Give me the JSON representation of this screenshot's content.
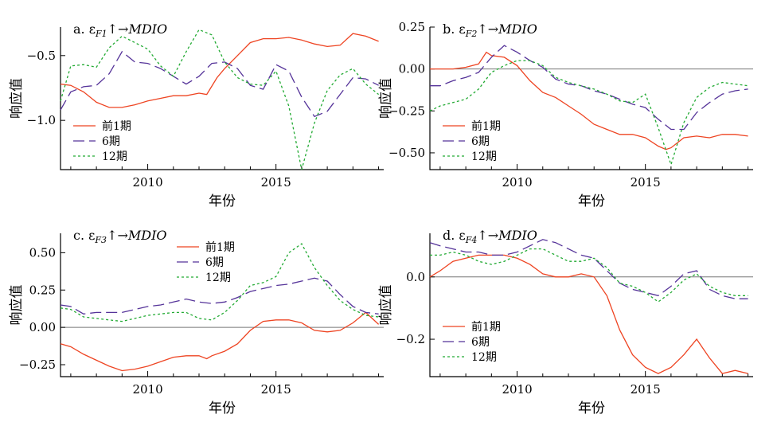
{
  "chart_data": [
    {
      "type": "line",
      "title": "a. εF1↑→MDIO",
      "title_parts": {
        "prefix": "a. ε",
        "sub": "F1",
        "suffix": "↑→",
        "italic": "MDIO"
      },
      "xlabel": "年份",
      "ylabel": "响应值",
      "xlim": [
        2006.6,
        2019.2
      ],
      "ylim": [
        -1.38,
        -0.28
      ],
      "xticks": [
        2010,
        2015
      ],
      "yticks": [
        -0.5,
        -1.0
      ],
      "ytick_labels": [
        "−0.5",
        "−1.0"
      ],
      "zero_line": false,
      "grid": false,
      "legend_position": "lower-left",
      "series": [
        {
          "name": "前1期",
          "color": "#ee4422",
          "dash": "solid",
          "x": [
            2006.6,
            2007.0,
            2007.5,
            2008.0,
            2008.5,
            2009.0,
            2009.5,
            2010.0,
            2010.5,
            2011.0,
            2011.5,
            2012.0,
            2012.3,
            2012.7,
            2013.0,
            2013.5,
            2014.0,
            2014.5,
            2015.0,
            2015.5,
            2016.0,
            2016.5,
            2017.0,
            2017.5,
            2018.0,
            2018.5,
            2019.0
          ],
          "y": [
            -0.72,
            -0.73,
            -0.78,
            -0.86,
            -0.9,
            -0.9,
            -0.88,
            -0.85,
            -0.83,
            -0.81,
            -0.81,
            -0.79,
            -0.8,
            -0.67,
            -0.6,
            -0.5,
            -0.4,
            -0.37,
            -0.37,
            -0.36,
            -0.38,
            -0.41,
            -0.43,
            -0.42,
            -0.33,
            -0.35,
            -0.39
          ]
        },
        {
          "name": "6期",
          "color": "#553399",
          "dash": "long",
          "x": [
            2006.6,
            2007.0,
            2007.5,
            2008.0,
            2008.5,
            2009.0,
            2009.5,
            2010.0,
            2010.5,
            2011.0,
            2011.5,
            2012.0,
            2012.5,
            2013.0,
            2013.5,
            2014.0,
            2014.5,
            2015.0,
            2015.5,
            2016.0,
            2016.5,
            2017.0,
            2017.5,
            2018.0,
            2018.5,
            2019.0
          ],
          "y": [
            -0.92,
            -0.78,
            -0.74,
            -0.73,
            -0.64,
            -0.47,
            -0.55,
            -0.56,
            -0.6,
            -0.66,
            -0.72,
            -0.66,
            -0.56,
            -0.55,
            -0.6,
            -0.73,
            -0.76,
            -0.57,
            -0.62,
            -0.82,
            -0.97,
            -0.93,
            -0.8,
            -0.67,
            -0.68,
            -0.73
          ]
        },
        {
          "name": "12期",
          "color": "#22aa33",
          "dash": "dot",
          "x": [
            2006.6,
            2007.0,
            2007.5,
            2008.0,
            2008.5,
            2009.0,
            2009.5,
            2010.0,
            2010.5,
            2011.0,
            2011.5,
            2012.0,
            2012.5,
            2013.0,
            2013.5,
            2014.0,
            2014.5,
            2015.0,
            2015.5,
            2016.0,
            2016.5,
            2017.0,
            2017.5,
            2018.0,
            2018.5,
            2019.0
          ],
          "y": [
            -0.85,
            -0.58,
            -0.57,
            -0.59,
            -0.44,
            -0.35,
            -0.4,
            -0.45,
            -0.58,
            -0.66,
            -0.47,
            -0.3,
            -0.34,
            -0.55,
            -0.67,
            -0.72,
            -0.73,
            -0.62,
            -0.89,
            -1.38,
            -1.02,
            -0.77,
            -0.65,
            -0.6,
            -0.72,
            -0.8
          ]
        }
      ]
    },
    {
      "type": "line",
      "title": "b. εF2↑→MDIO",
      "title_parts": {
        "prefix": "b. ε",
        "sub": "F2",
        "suffix": "↑→",
        "italic": "MDIO"
      },
      "xlabel": "年份",
      "ylabel": "响应值",
      "xlim": [
        2006.6,
        2019.2
      ],
      "ylim": [
        -0.6,
        0.25
      ],
      "xticks": [
        2010,
        2015
      ],
      "yticks": [
        0.25,
        0.0,
        -0.25,
        -0.5
      ],
      "ytick_labels": [
        "0.25",
        "0.00",
        "−0.25",
        "−0.50"
      ],
      "zero_line": true,
      "grid": false,
      "legend_position": "lower-left",
      "series": [
        {
          "name": "前1期",
          "color": "#ee4422",
          "dash": "solid",
          "x": [
            2006.6,
            2007.0,
            2007.5,
            2008.0,
            2008.5,
            2008.8,
            2009.0,
            2009.5,
            2010.0,
            2010.5,
            2011.0,
            2011.5,
            2012.0,
            2012.5,
            2013.0,
            2013.5,
            2014.0,
            2014.5,
            2015.0,
            2015.5,
            2015.8,
            2016.0,
            2016.5,
            2017.0,
            2017.5,
            2018.0,
            2018.5,
            2019.0
          ],
          "y": [
            0.0,
            0.0,
            0.0,
            0.01,
            0.03,
            0.1,
            0.08,
            0.07,
            0.02,
            -0.07,
            -0.14,
            -0.17,
            -0.22,
            -0.27,
            -0.33,
            -0.36,
            -0.39,
            -0.39,
            -0.41,
            -0.46,
            -0.48,
            -0.47,
            -0.41,
            -0.4,
            -0.41,
            -0.39,
            -0.39,
            -0.4
          ]
        },
        {
          "name": "6期",
          "color": "#553399",
          "dash": "long",
          "x": [
            2006.6,
            2007.0,
            2007.5,
            2008.0,
            2008.5,
            2009.0,
            2009.5,
            2010.0,
            2010.5,
            2011.0,
            2011.5,
            2012.0,
            2012.5,
            2013.0,
            2013.5,
            2014.0,
            2014.5,
            2015.0,
            2015.5,
            2016.0,
            2016.5,
            2017.0,
            2017.5,
            2018.0,
            2018.5,
            2019.0
          ],
          "y": [
            -0.1,
            -0.1,
            -0.07,
            -0.05,
            -0.02,
            0.07,
            0.14,
            0.1,
            0.05,
            0.01,
            -0.06,
            -0.09,
            -0.1,
            -0.13,
            -0.15,
            -0.18,
            -0.21,
            -0.23,
            -0.3,
            -0.36,
            -0.36,
            -0.26,
            -0.2,
            -0.15,
            -0.13,
            -0.12
          ]
        },
        {
          "name": "12期",
          "color": "#22aa33",
          "dash": "dot",
          "x": [
            2006.6,
            2007.0,
            2007.5,
            2008.0,
            2008.5,
            2009.0,
            2009.5,
            2010.0,
            2010.5,
            2011.0,
            2011.5,
            2012.0,
            2012.5,
            2013.0,
            2013.5,
            2014.0,
            2014.5,
            2015.0,
            2015.5,
            2016.0,
            2016.5,
            2017.0,
            2017.5,
            2018.0,
            2018.5,
            2019.0
          ],
          "y": [
            -0.25,
            -0.22,
            -0.2,
            -0.18,
            -0.12,
            -0.02,
            0.02,
            0.05,
            0.05,
            0.02,
            -0.05,
            -0.08,
            -0.1,
            -0.12,
            -0.15,
            -0.19,
            -0.2,
            -0.15,
            -0.35,
            -0.57,
            -0.32,
            -0.17,
            -0.11,
            -0.08,
            -0.09,
            -0.1
          ]
        }
      ]
    },
    {
      "type": "line",
      "title": "c. εF3↑→MDIO",
      "title_parts": {
        "prefix": "c. ε",
        "sub": "F3",
        "suffix": "↑→",
        "italic": "MDIO"
      },
      "xlabel": "年份",
      "ylabel": "响应值",
      "xlim": [
        2006.6,
        2019.2
      ],
      "ylim": [
        -0.33,
        0.63
      ],
      "xticks": [
        2010,
        2015
      ],
      "yticks": [
        0.5,
        0.25,
        0.0,
        -0.25
      ],
      "ytick_labels": [
        "0.50",
        "0.25",
        "0.00",
        "−0.25"
      ],
      "zero_line": true,
      "grid": false,
      "legend_position": "top-right",
      "series": [
        {
          "name": "前1期",
          "color": "#ee4422",
          "dash": "solid",
          "x": [
            2006.6,
            2007.0,
            2007.5,
            2008.0,
            2008.5,
            2009.0,
            2009.5,
            2010.0,
            2010.5,
            2011.0,
            2011.5,
            2012.0,
            2012.3,
            2012.5,
            2013.0,
            2013.5,
            2014.0,
            2014.5,
            2015.0,
            2015.5,
            2016.0,
            2016.5,
            2017.0,
            2017.5,
            2018.0,
            2018.5,
            2019.0
          ],
          "y": [
            -0.11,
            -0.13,
            -0.18,
            -0.22,
            -0.26,
            -0.29,
            -0.28,
            -0.26,
            -0.23,
            -0.2,
            -0.19,
            -0.19,
            -0.21,
            -0.19,
            -0.16,
            -0.11,
            -0.02,
            0.04,
            0.05,
            0.05,
            0.03,
            -0.02,
            -0.03,
            -0.02,
            0.03,
            0.1,
            0.02
          ]
        },
        {
          "name": "6期",
          "color": "#553399",
          "dash": "long",
          "x": [
            2006.6,
            2007.0,
            2007.5,
            2008.0,
            2008.5,
            2009.0,
            2009.5,
            2010.0,
            2010.5,
            2011.0,
            2011.5,
            2012.0,
            2012.5,
            2013.0,
            2013.5,
            2014.0,
            2014.5,
            2015.0,
            2015.5,
            2016.0,
            2016.5,
            2017.0,
            2017.5,
            2018.0,
            2018.5,
            2019.0
          ],
          "y": [
            0.15,
            0.14,
            0.09,
            0.1,
            0.1,
            0.1,
            0.12,
            0.14,
            0.15,
            0.17,
            0.19,
            0.17,
            0.16,
            0.17,
            0.2,
            0.24,
            0.26,
            0.28,
            0.29,
            0.31,
            0.33,
            0.31,
            0.22,
            0.14,
            0.1,
            0.09
          ]
        },
        {
          "name": "12期",
          "color": "#22aa33",
          "dash": "dot",
          "x": [
            2006.6,
            2007.0,
            2007.5,
            2008.0,
            2008.5,
            2009.0,
            2009.5,
            2010.0,
            2010.5,
            2011.0,
            2011.5,
            2012.0,
            2012.5,
            2013.0,
            2013.5,
            2014.0,
            2014.5,
            2015.0,
            2015.5,
            2016.0,
            2016.5,
            2017.0,
            2017.5,
            2018.0,
            2018.5,
            2019.0
          ],
          "y": [
            0.13,
            0.12,
            0.07,
            0.06,
            0.05,
            0.04,
            0.06,
            0.08,
            0.09,
            0.1,
            0.1,
            0.06,
            0.05,
            0.1,
            0.18,
            0.28,
            0.3,
            0.34,
            0.5,
            0.56,
            0.4,
            0.28,
            0.18,
            0.12,
            0.08,
            0.07
          ]
        }
      ]
    },
    {
      "type": "line",
      "title": "d. εF4↑→MDIO",
      "title_parts": {
        "prefix": "d. ε",
        "sub": "F4",
        "suffix": "↑→",
        "italic": "MDIO"
      },
      "xlabel": "年份",
      "ylabel": "响应值",
      "xlim": [
        2006.6,
        2019.2
      ],
      "ylim": [
        -0.32,
        0.14
      ],
      "xticks": [
        2010,
        2015
      ],
      "yticks": [
        0.0,
        -0.2
      ],
      "ytick_labels": [
        "0.0",
        "−0.2"
      ],
      "zero_line": true,
      "grid": false,
      "legend_position": "lower-left",
      "series": [
        {
          "name": "前1期",
          "color": "#ee4422",
          "dash": "solid",
          "x": [
            2006.6,
            2007.0,
            2007.5,
            2008.0,
            2008.5,
            2009.0,
            2009.5,
            2010.0,
            2010.5,
            2011.0,
            2011.5,
            2012.0,
            2012.5,
            2013.0,
            2013.5,
            2014.0,
            2014.5,
            2015.0,
            2015.5,
            2016.0,
            2016.5,
            2017.0,
            2017.5,
            2018.0,
            2018.5,
            2019.0
          ],
          "y": [
            0.0,
            0.02,
            0.05,
            0.06,
            0.07,
            0.07,
            0.07,
            0.06,
            0.04,
            0.01,
            0.0,
            0.0,
            0.01,
            0.0,
            -0.06,
            -0.17,
            -0.25,
            -0.29,
            -0.31,
            -0.29,
            -0.25,
            -0.2,
            -0.26,
            -0.31,
            -0.3,
            -0.31
          ]
        },
        {
          "name": "6期",
          "color": "#553399",
          "dash": "long",
          "x": [
            2006.6,
            2007.0,
            2007.5,
            2008.0,
            2008.5,
            2009.0,
            2009.5,
            2010.0,
            2010.5,
            2011.0,
            2011.5,
            2012.0,
            2012.5,
            2013.0,
            2013.5,
            2014.0,
            2014.5,
            2015.0,
            2015.5,
            2016.0,
            2016.5,
            2017.0,
            2017.5,
            2018.0,
            2018.5,
            2019.0
          ],
          "y": [
            0.11,
            0.1,
            0.09,
            0.08,
            0.08,
            0.07,
            0.07,
            0.08,
            0.1,
            0.12,
            0.11,
            0.09,
            0.07,
            0.06,
            0.02,
            -0.02,
            -0.04,
            -0.05,
            -0.06,
            -0.03,
            0.01,
            0.02,
            -0.04,
            -0.06,
            -0.07,
            -0.07
          ]
        },
        {
          "name": "12期",
          "color": "#22aa33",
          "dash": "dot",
          "x": [
            2006.6,
            2007.0,
            2007.5,
            2008.0,
            2008.5,
            2009.0,
            2009.5,
            2010.0,
            2010.5,
            2011.0,
            2011.5,
            2012.0,
            2012.5,
            2013.0,
            2013.5,
            2014.0,
            2014.5,
            2015.0,
            2015.5,
            2016.0,
            2016.5,
            2017.0,
            2017.5,
            2018.0,
            2018.5,
            2019.0
          ],
          "y": [
            0.07,
            0.07,
            0.08,
            0.07,
            0.05,
            0.04,
            0.05,
            0.07,
            0.09,
            0.09,
            0.07,
            0.05,
            0.05,
            0.06,
            0.03,
            -0.02,
            -0.03,
            -0.05,
            -0.08,
            -0.05,
            -0.01,
            0.01,
            -0.03,
            -0.05,
            -0.06,
            -0.06
          ]
        }
      ]
    }
  ]
}
